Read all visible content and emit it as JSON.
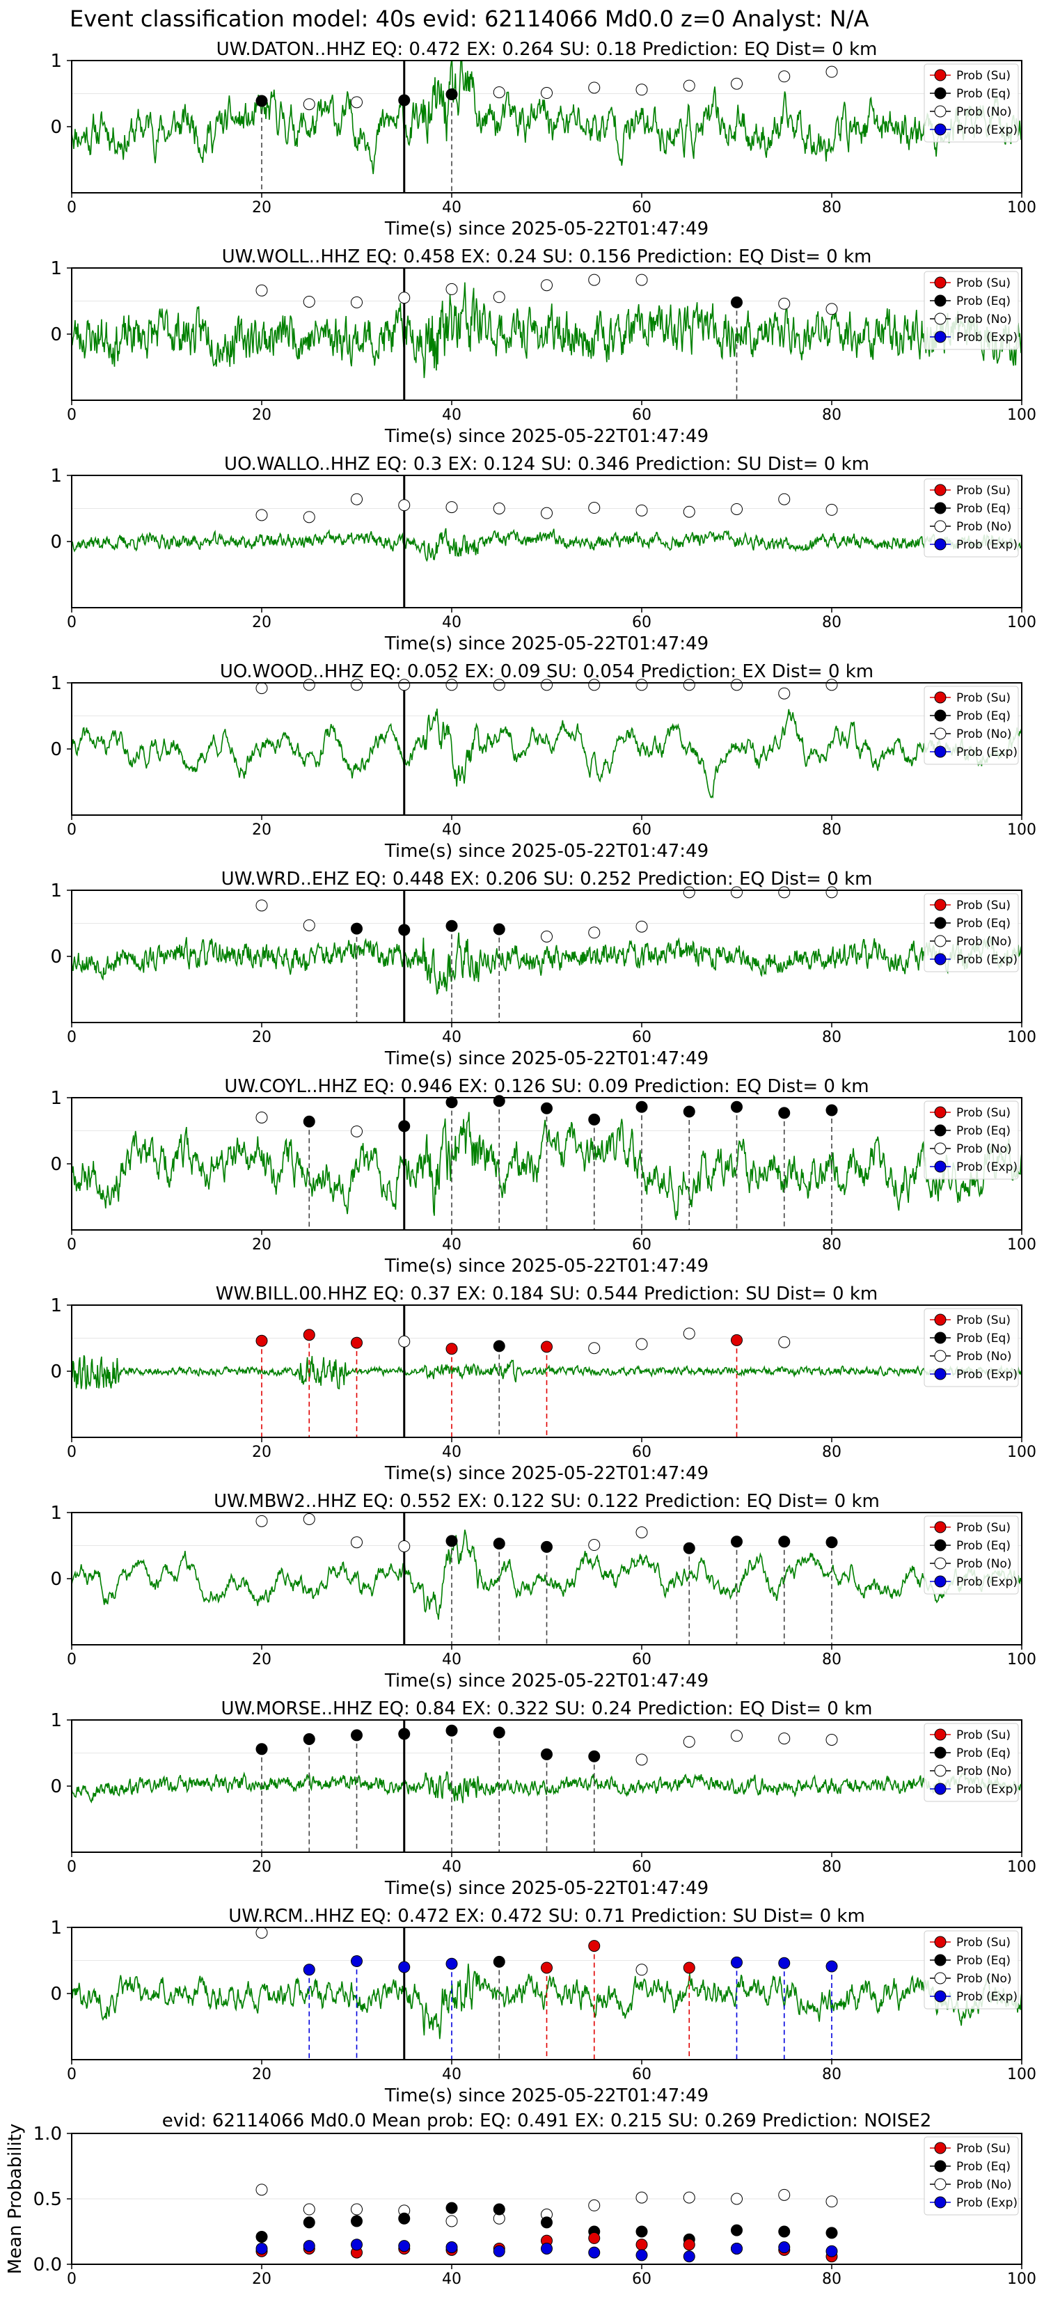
{
  "header": {
    "title": "Event classification model: 40s evid: 62114066 Md0.0 z=0 Analyst: N/A"
  },
  "legend_labels": [
    "Prob (Su)",
    "Prob (Eq)",
    "Prob (No)",
    "Prob (Exp)"
  ],
  "colors": {
    "su": "#e00000",
    "eq": "#000000",
    "no": "#ffffff",
    "exp": "#0000dd",
    "trace": "#008000",
    "frame": "#000000"
  },
  "xlabel": "Time(s) since 2025-05-22T01:47:49",
  "x_ticks": [
    0,
    20,
    40,
    60,
    80,
    100
  ],
  "y_ticks": [
    0,
    1
  ],
  "event_time": 35,
  "chart_data": [
    {
      "type": "line",
      "title": "UW.DATON..HHZ   EQ: 0.472  EX: 0.264  SU: 0.18   Prediction: EQ    Dist= 0 km",
      "xlim": [
        0,
        100
      ],
      "ylim": [
        -1,
        1
      ],
      "trace": {
        "style": "medium",
        "amp": 0.3,
        "seed": 11
      },
      "x": [
        20,
        25,
        30,
        35,
        40,
        45,
        50,
        55,
        60,
        65,
        70,
        75,
        80
      ],
      "points": [
        {
          "x": 20,
          "y": 0.39,
          "class": "eq"
        },
        {
          "x": 25,
          "y": 0.34,
          "class": "no"
        },
        {
          "x": 30,
          "y": 0.37,
          "class": "no"
        },
        {
          "x": 35,
          "y": 0.4,
          "class": "eq"
        },
        {
          "x": 40,
          "y": 0.49,
          "class": "eq"
        },
        {
          "x": 45,
          "y": 0.52,
          "class": "no"
        },
        {
          "x": 50,
          "y": 0.51,
          "class": "no"
        },
        {
          "x": 55,
          "y": 0.59,
          "class": "no"
        },
        {
          "x": 60,
          "y": 0.56,
          "class": "no"
        },
        {
          "x": 65,
          "y": 0.62,
          "class": "no"
        },
        {
          "x": 70,
          "y": 0.65,
          "class": "no"
        },
        {
          "x": 75,
          "y": 0.76,
          "class": "no"
        },
        {
          "x": 80,
          "y": 0.83,
          "class": "no"
        }
      ]
    },
    {
      "type": "line",
      "title": "UW.WOLL..HHZ   EQ: 0.458  EX: 0.24  SU: 0.156   Prediction: EQ    Dist= 0 km",
      "xlim": [
        0,
        100
      ],
      "ylim": [
        -1,
        1
      ],
      "trace": {
        "style": "noisy",
        "amp": 0.38,
        "seed": 23
      },
      "points": [
        {
          "x": 20,
          "y": 0.66,
          "class": "no"
        },
        {
          "x": 25,
          "y": 0.49,
          "class": "no"
        },
        {
          "x": 30,
          "y": 0.48,
          "class": "no"
        },
        {
          "x": 35,
          "y": 0.55,
          "class": "no"
        },
        {
          "x": 40,
          "y": 0.68,
          "class": "no"
        },
        {
          "x": 45,
          "y": 0.56,
          "class": "no"
        },
        {
          "x": 50,
          "y": 0.74,
          "class": "no"
        },
        {
          "x": 55,
          "y": 0.82,
          "class": "no"
        },
        {
          "x": 60,
          "y": 0.82,
          "class": "no"
        },
        {
          "x": 70,
          "y": 0.48,
          "class": "eq"
        },
        {
          "x": 75,
          "y": 0.46,
          "class": "no"
        },
        {
          "x": 80,
          "y": 0.38,
          "class": "no"
        }
      ]
    },
    {
      "type": "line",
      "title": "UO.WALLO..HHZ   EQ: 0.3  EX: 0.124  SU: 0.346   Prediction: SU    Dist= 0 km",
      "xlim": [
        0,
        100
      ],
      "ylim": [
        -1,
        1
      ],
      "trace": {
        "style": "noisy",
        "amp": 0.12,
        "seed": 37
      },
      "points": [
        {
          "x": 20,
          "y": 0.4,
          "class": "no"
        },
        {
          "x": 25,
          "y": 0.37,
          "class": "no"
        },
        {
          "x": 30,
          "y": 0.64,
          "class": "no"
        },
        {
          "x": 35,
          "y": 0.55,
          "class": "no"
        },
        {
          "x": 40,
          "y": 0.52,
          "class": "no"
        },
        {
          "x": 45,
          "y": 0.5,
          "class": "no"
        },
        {
          "x": 50,
          "y": 0.43,
          "class": "no"
        },
        {
          "x": 55,
          "y": 0.51,
          "class": "no"
        },
        {
          "x": 60,
          "y": 0.47,
          "class": "no"
        },
        {
          "x": 65,
          "y": 0.45,
          "class": "no"
        },
        {
          "x": 70,
          "y": 0.49,
          "class": "no"
        },
        {
          "x": 75,
          "y": 0.64,
          "class": "no"
        },
        {
          "x": 80,
          "y": 0.48,
          "class": "no"
        }
      ]
    },
    {
      "type": "line",
      "title": "UO.WOOD..HHZ   EQ: 0.052  EX: 0.09  SU: 0.054   Prediction: EX    Dist= 0 km",
      "xlim": [
        0,
        100
      ],
      "ylim": [
        -1,
        1
      ],
      "trace": {
        "style": "smooth",
        "amp": 0.5,
        "seed": 41
      },
      "points": [
        {
          "x": 20,
          "y": 0.92,
          "class": "no"
        },
        {
          "x": 25,
          "y": 0.97,
          "class": "no"
        },
        {
          "x": 30,
          "y": 0.97,
          "class": "no"
        },
        {
          "x": 35,
          "y": 0.97,
          "class": "no"
        },
        {
          "x": 40,
          "y": 0.97,
          "class": "no"
        },
        {
          "x": 45,
          "y": 0.97,
          "class": "no"
        },
        {
          "x": 50,
          "y": 0.97,
          "class": "no"
        },
        {
          "x": 55,
          "y": 0.97,
          "class": "no"
        },
        {
          "x": 60,
          "y": 0.97,
          "class": "no"
        },
        {
          "x": 65,
          "y": 0.97,
          "class": "no"
        },
        {
          "x": 70,
          "y": 0.97,
          "class": "no"
        },
        {
          "x": 75,
          "y": 0.84,
          "class": "no"
        },
        {
          "x": 80,
          "y": 0.97,
          "class": "no"
        }
      ]
    },
    {
      "type": "line",
      "title": "UW.WRD..EHZ   EQ: 0.448  EX: 0.206  SU: 0.252   Prediction: EQ    Dist= 0 km",
      "xlim": [
        0,
        100
      ],
      "ylim": [
        -1,
        1
      ],
      "trace": {
        "style": "noisy",
        "amp": 0.22,
        "seed": 53
      },
      "points": [
        {
          "x": 20,
          "y": 0.77,
          "class": "no"
        },
        {
          "x": 25,
          "y": 0.47,
          "class": "no"
        },
        {
          "x": 30,
          "y": 0.42,
          "class": "eq"
        },
        {
          "x": 35,
          "y": 0.4,
          "class": "eq"
        },
        {
          "x": 40,
          "y": 0.46,
          "class": "eq"
        },
        {
          "x": 45,
          "y": 0.41,
          "class": "eq"
        },
        {
          "x": 50,
          "y": 0.3,
          "class": "no"
        },
        {
          "x": 55,
          "y": 0.36,
          "class": "no"
        },
        {
          "x": 60,
          "y": 0.45,
          "class": "no"
        },
        {
          "x": 65,
          "y": 0.97,
          "class": "no"
        },
        {
          "x": 70,
          "y": 0.97,
          "class": "no"
        },
        {
          "x": 75,
          "y": 0.97,
          "class": "no"
        },
        {
          "x": 80,
          "y": 0.97,
          "class": "no"
        }
      ]
    },
    {
      "type": "line",
      "title": "UW.COYL..HHZ   EQ: 0.946  EX: 0.126  SU: 0.09   Prediction: EQ    Dist= 0 km",
      "xlim": [
        0,
        100
      ],
      "ylim": [
        -1,
        1
      ],
      "trace": {
        "style": "medium",
        "amp": 0.3,
        "seed": 67
      },
      "points": [
        {
          "x": 20,
          "y": 0.7,
          "class": "no"
        },
        {
          "x": 25,
          "y": 0.64,
          "class": "eq"
        },
        {
          "x": 30,
          "y": 0.49,
          "class": "no"
        },
        {
          "x": 35,
          "y": 0.57,
          "class": "eq"
        },
        {
          "x": 40,
          "y": 0.93,
          "class": "eq"
        },
        {
          "x": 45,
          "y": 0.95,
          "class": "eq"
        },
        {
          "x": 50,
          "y": 0.84,
          "class": "eq"
        },
        {
          "x": 55,
          "y": 0.67,
          "class": "eq"
        },
        {
          "x": 60,
          "y": 0.86,
          "class": "eq"
        },
        {
          "x": 65,
          "y": 0.79,
          "class": "eq"
        },
        {
          "x": 70,
          "y": 0.86,
          "class": "eq"
        },
        {
          "x": 75,
          "y": 0.77,
          "class": "eq"
        },
        {
          "x": 80,
          "y": 0.81,
          "class": "eq"
        }
      ]
    },
    {
      "type": "line",
      "title": "WW.BILL.00.HHZ   EQ: 0.37  EX: 0.184  SU: 0.544   Prediction: SU    Dist= 0 km",
      "xlim": [
        0,
        100
      ],
      "ylim": [
        -1,
        1
      ],
      "trace": {
        "style": "bursty",
        "amp": 0.08,
        "seed": 79
      },
      "points": [
        {
          "x": 20,
          "y": 0.46,
          "class": "su"
        },
        {
          "x": 25,
          "y": 0.55,
          "class": "su"
        },
        {
          "x": 30,
          "y": 0.43,
          "class": "su"
        },
        {
          "x": 35,
          "y": 0.45,
          "class": "no"
        },
        {
          "x": 40,
          "y": 0.34,
          "class": "su"
        },
        {
          "x": 45,
          "y": 0.38,
          "class": "eq"
        },
        {
          "x": 50,
          "y": 0.37,
          "class": "su"
        },
        {
          "x": 55,
          "y": 0.35,
          "class": "no"
        },
        {
          "x": 60,
          "y": 0.41,
          "class": "no"
        },
        {
          "x": 65,
          "y": 0.57,
          "class": "no"
        },
        {
          "x": 70,
          "y": 0.47,
          "class": "su"
        },
        {
          "x": 75,
          "y": 0.44,
          "class": "no"
        }
      ]
    },
    {
      "type": "line",
      "title": "UW.MBW2..HHZ   EQ: 0.552  EX: 0.122  SU: 0.122   Prediction: EQ    Dist= 0 km",
      "xlim": [
        0,
        100
      ],
      "ylim": [
        -1,
        1
      ],
      "trace": {
        "style": "smooth",
        "amp": 0.45,
        "seed": 83
      },
      "points": [
        {
          "x": 20,
          "y": 0.87,
          "class": "no"
        },
        {
          "x": 25,
          "y": 0.9,
          "class": "no"
        },
        {
          "x": 30,
          "y": 0.55,
          "class": "no"
        },
        {
          "x": 35,
          "y": 0.49,
          "class": "no"
        },
        {
          "x": 40,
          "y": 0.57,
          "class": "eq"
        },
        {
          "x": 45,
          "y": 0.53,
          "class": "eq"
        },
        {
          "x": 50,
          "y": 0.48,
          "class": "eq"
        },
        {
          "x": 55,
          "y": 0.51,
          "class": "no"
        },
        {
          "x": 60,
          "y": 0.7,
          "class": "no"
        },
        {
          "x": 65,
          "y": 0.46,
          "class": "eq"
        },
        {
          "x": 70,
          "y": 0.56,
          "class": "eq"
        },
        {
          "x": 75,
          "y": 0.56,
          "class": "eq"
        },
        {
          "x": 80,
          "y": 0.55,
          "class": "eq"
        }
      ]
    },
    {
      "type": "line",
      "title": "UW.MORSE..HHZ   EQ: 0.84  EX: 0.322  SU: 0.24   Prediction: EQ    Dist= 0 km",
      "xlim": [
        0,
        100
      ],
      "ylim": [
        -1,
        1
      ],
      "trace": {
        "style": "noisy",
        "amp": 0.13,
        "seed": 97
      },
      "points": [
        {
          "x": 20,
          "y": 0.56,
          "class": "eq"
        },
        {
          "x": 25,
          "y": 0.71,
          "class": "eq"
        },
        {
          "x": 30,
          "y": 0.77,
          "class": "eq"
        },
        {
          "x": 35,
          "y": 0.79,
          "class": "eq"
        },
        {
          "x": 40,
          "y": 0.84,
          "class": "eq"
        },
        {
          "x": 45,
          "y": 0.81,
          "class": "eq"
        },
        {
          "x": 50,
          "y": 0.48,
          "class": "eq"
        },
        {
          "x": 55,
          "y": 0.45,
          "class": "eq"
        },
        {
          "x": 60,
          "y": 0.4,
          "class": "no"
        },
        {
          "x": 65,
          "y": 0.67,
          "class": "no"
        },
        {
          "x": 70,
          "y": 0.76,
          "class": "no"
        },
        {
          "x": 75,
          "y": 0.72,
          "class": "no"
        },
        {
          "x": 80,
          "y": 0.7,
          "class": "no"
        }
      ]
    },
    {
      "type": "line",
      "title": "UW.RCM..HHZ   EQ: 0.472  EX: 0.472  SU: 0.71   Prediction: SU    Dist= 0 km",
      "xlim": [
        0,
        100
      ],
      "ylim": [
        -1,
        1
      ],
      "trace": {
        "style": "medium",
        "amp": 0.2,
        "seed": 101
      },
      "points": [
        {
          "x": 20,
          "y": 0.92,
          "class": "no"
        },
        {
          "x": 25,
          "y": 0.36,
          "class": "exp"
        },
        {
          "x": 30,
          "y": 0.49,
          "class": "exp"
        },
        {
          "x": 35,
          "y": 0.4,
          "class": "exp"
        },
        {
          "x": 40,
          "y": 0.45,
          "class": "exp"
        },
        {
          "x": 45,
          "y": 0.48,
          "class": "eq"
        },
        {
          "x": 50,
          "y": 0.39,
          "class": "su"
        },
        {
          "x": 55,
          "y": 0.72,
          "class": "su"
        },
        {
          "x": 60,
          "y": 0.36,
          "class": "no"
        },
        {
          "x": 65,
          "y": 0.39,
          "class": "su"
        },
        {
          "x": 70,
          "y": 0.47,
          "class": "exp"
        },
        {
          "x": 75,
          "y": 0.46,
          "class": "exp"
        },
        {
          "x": 80,
          "y": 0.41,
          "class": "exp"
        }
      ]
    },
    {
      "type": "scatter",
      "title": "evid: 62114066  Md0.0   Mean prob:   EQ: 0.491  EX: 0.215  SU: 0.269   Prediction: NOISE2",
      "ylabel": "Mean Probability",
      "xlim": [
        0,
        100
      ],
      "ylim": [
        0,
        1
      ],
      "y_ticks": [
        "0.0",
        "0.5",
        "1.0"
      ],
      "x": [
        20,
        25,
        30,
        35,
        40,
        45,
        50,
        55,
        60,
        65,
        70,
        75,
        80
      ],
      "series": [
        {
          "name": "Prob (No)",
          "class": "no",
          "values": [
            0.57,
            0.42,
            0.42,
            0.41,
            0.33,
            0.35,
            0.38,
            0.45,
            0.51,
            0.51,
            0.5,
            0.53,
            0.48
          ]
        },
        {
          "name": "Prob (Eq)",
          "class": "eq",
          "values": [
            0.21,
            0.32,
            0.33,
            0.35,
            0.43,
            0.42,
            0.32,
            0.25,
            0.25,
            0.19,
            0.26,
            0.25,
            0.24
          ]
        },
        {
          "name": "Prob (Su)",
          "class": "su",
          "values": [
            0.1,
            0.12,
            0.09,
            0.12,
            0.11,
            0.12,
            0.18,
            0.2,
            0.15,
            0.15,
            0.12,
            0.11,
            0.06
          ]
        },
        {
          "name": "Prob (Exp)",
          "class": "exp",
          "values": [
            0.12,
            0.14,
            0.15,
            0.14,
            0.13,
            0.1,
            0.12,
            0.09,
            0.07,
            0.06,
            0.12,
            0.13,
            0.1
          ]
        }
      ]
    }
  ]
}
